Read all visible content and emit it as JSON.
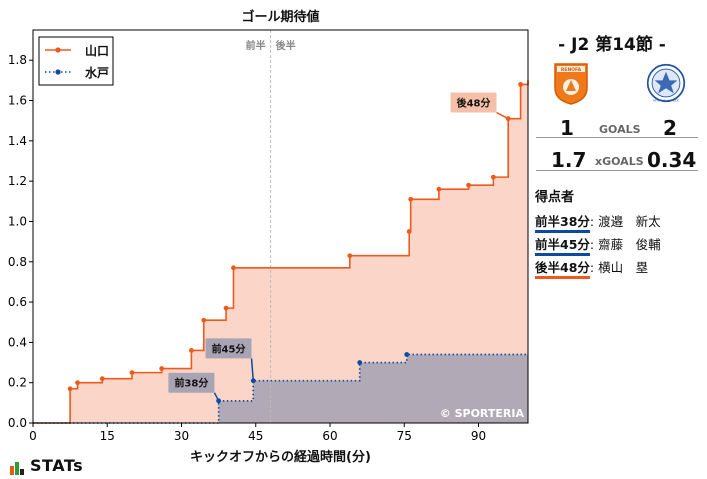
{
  "chart_data": {
    "type": "line",
    "title": "ゴール期待値",
    "xlabel": "キックオフからの経過時間(分)",
    "ylabel": "",
    "xlim": [
      0,
      100
    ],
    "ylim": [
      0,
      1.95
    ],
    "xticks": [
      0,
      15,
      30,
      45,
      60,
      75,
      90
    ],
    "yticks": [
      0.0,
      0.2,
      0.4,
      0.6,
      0.8,
      1.0,
      1.2,
      1.4,
      1.6,
      1.8
    ],
    "halftime_x": 48,
    "halftime_labels": [
      "前半",
      "後半"
    ],
    "watermark": "© SPORTERIA",
    "legend_position": "top-left",
    "series": [
      {
        "name": "山口",
        "color": "#ee5a1b",
        "fill": "#fbd2c2",
        "style": "solid",
        "x": [
          7.5,
          9,
          14,
          20,
          26,
          32,
          34.5,
          39,
          40.5,
          64,
          76,
          76.3,
          82,
          88,
          93,
          96,
          98.5,
          100
        ],
        "y": [
          0.17,
          0.2,
          0.22,
          0.25,
          0.27,
          0.36,
          0.51,
          0.57,
          0.77,
          0.83,
          0.95,
          1.11,
          1.16,
          1.18,
          1.22,
          1.51,
          1.68,
          1.7
        ]
      },
      {
        "name": "水戸",
        "color": "#0d4aa0",
        "fill": "#a9a4b4",
        "style": "dotted",
        "x": [
          37.5,
          44.5,
          66,
          75.5,
          100
        ],
        "y": [
          0.11,
          0.21,
          0.3,
          0.34,
          0.34
        ]
      }
    ],
    "annotations": [
      {
        "text": "前38分",
        "series": "水戸",
        "x": 37.5,
        "y": 0.11,
        "label_x": 32,
        "label_y": 0.2
      },
      {
        "text": "前45分",
        "series": "水戸",
        "x": 44.5,
        "y": 0.21,
        "label_x": 39.5,
        "label_y": 0.37
      },
      {
        "text": "後48分",
        "series": "山口",
        "x": 96,
        "y": 1.51,
        "label_x": 89,
        "label_y": 1.59
      }
    ]
  },
  "match": {
    "title": "-  J2 第14節  -",
    "home_score": "1",
    "away_score": "2",
    "goals_label": "GOALS",
    "home_xg": "1.7",
    "away_xg": "0.34",
    "xg_label": "xGOALS",
    "home_crest_text": "RENOFA",
    "away_crest_text": "MITO HOLLY HOCK",
    "scorers_title": "得点者",
    "scorers": [
      {
        "time": "前半38分",
        "name": "渡邉　新太",
        "color": "#0d4aa0"
      },
      {
        "time": "前半45分",
        "name": "齋藤　俊輔",
        "color": "#0d4aa0"
      },
      {
        "time": "後半48分",
        "name": "横山　塁",
        "color": "#ee5a1b"
      }
    ],
    "brand": "STATs"
  }
}
